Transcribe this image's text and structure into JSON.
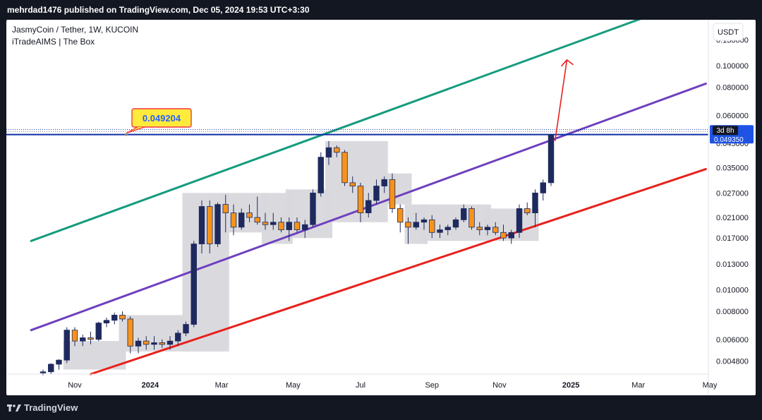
{
  "header": {
    "publish_line": "mehrdad1476 published on TradingView.com, Dec 05, 2024 19:53 UTC+3:30"
  },
  "footer": {
    "brand": "TradingView",
    "logo_icon": "tradingview-logo-icon"
  },
  "chart_data": {
    "type": "candlestick",
    "title": "JasmyCoin / Tether, 1W, KUCOIN",
    "indicator": "iTradeAIMS | The Box",
    "currency_button": "USDT",
    "y_scale": "log",
    "ylim": [
      0.0042,
      0.16
    ],
    "y_ticks": [
      {
        "value": 0.13,
        "label": "0.130000"
      },
      {
        "value": 0.1,
        "label": "0.100000"
      },
      {
        "value": 0.08,
        "label": "0.080000"
      },
      {
        "value": 0.06,
        "label": "0.060000"
      },
      {
        "value": 0.045,
        "label": "0.045000"
      },
      {
        "value": 0.035,
        "label": "0.035000"
      },
      {
        "value": 0.027,
        "label": "0.027000"
      },
      {
        "value": 0.021,
        "label": "0.021000"
      },
      {
        "value": 0.017,
        "label": "0.017000"
      },
      {
        "value": 0.013,
        "label": "0.013000"
      },
      {
        "value": 0.01,
        "label": "0.010000"
      },
      {
        "value": 0.008,
        "label": "0.008000"
      },
      {
        "value": 0.006,
        "label": "0.006000"
      },
      {
        "value": 0.0048,
        "label": "0.004800"
      }
    ],
    "x_ticks": [
      {
        "week": 4,
        "label": "Nov",
        "bold": false
      },
      {
        "week": 13.5,
        "label": "2024",
        "bold": true
      },
      {
        "week": 22.5,
        "label": "Mar",
        "bold": false
      },
      {
        "week": 31.5,
        "label": "May",
        "bold": false
      },
      {
        "week": 40,
        "label": "Jul",
        "bold": false
      },
      {
        "week": 49,
        "label": "Sep",
        "bold": false
      },
      {
        "week": 57.5,
        "label": "Nov",
        "bold": false
      },
      {
        "week": 66.5,
        "label": "2025",
        "bold": true
      },
      {
        "week": 75,
        "label": "Mar",
        "bold": false
      },
      {
        "week": 84,
        "label": "May",
        "bold": false
      }
    ],
    "colors": {
      "up": "#1e2a5e",
      "down": "#f7931a",
      "box": "#d8d8dc",
      "upper_line": "#159b7e",
      "mid_line": "#6e3fbf",
      "lower_line": "#e8201c",
      "level_line": "#0d2fa6",
      "arrow": "#e8201c",
      "label_bg": "#ffeb3b",
      "label_border": "#f23645",
      "label_text": "#2962ff"
    },
    "candles": [
      {
        "o": 0.00425,
        "h": 0.0044,
        "l": 0.00415,
        "c": 0.0043
      },
      {
        "o": 0.0043,
        "h": 0.0047,
        "l": 0.0042,
        "c": 0.00465
      },
      {
        "o": 0.00465,
        "h": 0.0049,
        "l": 0.0044,
        "c": 0.00485
      },
      {
        "o": 0.00485,
        "h": 0.0068,
        "l": 0.0047,
        "c": 0.0066
      },
      {
        "o": 0.0066,
        "h": 0.0068,
        "l": 0.0056,
        "c": 0.0059
      },
      {
        "o": 0.0059,
        "h": 0.0063,
        "l": 0.0056,
        "c": 0.0061
      },
      {
        "o": 0.0061,
        "h": 0.0065,
        "l": 0.0057,
        "c": 0.006
      },
      {
        "o": 0.006,
        "h": 0.0072,
        "l": 0.0059,
        "c": 0.0071
      },
      {
        "o": 0.0071,
        "h": 0.0075,
        "l": 0.0068,
        "c": 0.0073
      },
      {
        "o": 0.0073,
        "h": 0.0079,
        "l": 0.007,
        "c": 0.0077
      },
      {
        "o": 0.0077,
        "h": 0.008,
        "l": 0.0072,
        "c": 0.0074
      },
      {
        "o": 0.0074,
        "h": 0.0076,
        "l": 0.0052,
        "c": 0.0056
      },
      {
        "o": 0.0056,
        "h": 0.0061,
        "l": 0.0052,
        "c": 0.0059
      },
      {
        "o": 0.0059,
        "h": 0.0062,
        "l": 0.0054,
        "c": 0.0057
      },
      {
        "o": 0.0057,
        "h": 0.0062,
        "l": 0.0054,
        "c": 0.0058
      },
      {
        "o": 0.0058,
        "h": 0.006,
        "l": 0.0055,
        "c": 0.0057
      },
      {
        "o": 0.0057,
        "h": 0.0062,
        "l": 0.0054,
        "c": 0.0059
      },
      {
        "o": 0.0059,
        "h": 0.0066,
        "l": 0.0056,
        "c": 0.0064
      },
      {
        "o": 0.0064,
        "h": 0.0072,
        "l": 0.0062,
        "c": 0.007
      },
      {
        "o": 0.007,
        "h": 0.0165,
        "l": 0.0068,
        "c": 0.016
      },
      {
        "o": 0.016,
        "h": 0.025,
        "l": 0.0145,
        "c": 0.0235
      },
      {
        "o": 0.0235,
        "h": 0.025,
        "l": 0.0145,
        "c": 0.016
      },
      {
        "o": 0.016,
        "h": 0.0245,
        "l": 0.0155,
        "c": 0.024
      },
      {
        "o": 0.024,
        "h": 0.0265,
        "l": 0.018,
        "c": 0.022
      },
      {
        "o": 0.022,
        "h": 0.024,
        "l": 0.0175,
        "c": 0.019
      },
      {
        "o": 0.019,
        "h": 0.023,
        "l": 0.0185,
        "c": 0.022
      },
      {
        "o": 0.022,
        "h": 0.024,
        "l": 0.02,
        "c": 0.021
      },
      {
        "o": 0.021,
        "h": 0.026,
        "l": 0.0195,
        "c": 0.02
      },
      {
        "o": 0.02,
        "h": 0.022,
        "l": 0.0185,
        "c": 0.0195
      },
      {
        "o": 0.0195,
        "h": 0.022,
        "l": 0.0185,
        "c": 0.02
      },
      {
        "o": 0.02,
        "h": 0.021,
        "l": 0.018,
        "c": 0.0185
      },
      {
        "o": 0.0185,
        "h": 0.021,
        "l": 0.0165,
        "c": 0.02
      },
      {
        "o": 0.02,
        "h": 0.021,
        "l": 0.018,
        "c": 0.0185
      },
      {
        "o": 0.0185,
        "h": 0.0205,
        "l": 0.017,
        "c": 0.0195
      },
      {
        "o": 0.0195,
        "h": 0.028,
        "l": 0.019,
        "c": 0.027
      },
      {
        "o": 0.027,
        "h": 0.041,
        "l": 0.026,
        "c": 0.039
      },
      {
        "o": 0.039,
        "h": 0.046,
        "l": 0.036,
        "c": 0.043
      },
      {
        "o": 0.043,
        "h": 0.044,
        "l": 0.039,
        "c": 0.041
      },
      {
        "o": 0.041,
        "h": 0.042,
        "l": 0.029,
        "c": 0.03
      },
      {
        "o": 0.03,
        "h": 0.032,
        "l": 0.027,
        "c": 0.029
      },
      {
        "o": 0.029,
        "h": 0.03,
        "l": 0.02,
        "c": 0.022
      },
      {
        "o": 0.022,
        "h": 0.027,
        "l": 0.021,
        "c": 0.025
      },
      {
        "o": 0.025,
        "h": 0.031,
        "l": 0.024,
        "c": 0.029
      },
      {
        "o": 0.029,
        "h": 0.032,
        "l": 0.027,
        "c": 0.031
      },
      {
        "o": 0.031,
        "h": 0.033,
        "l": 0.022,
        "c": 0.023
      },
      {
        "o": 0.023,
        "h": 0.024,
        "l": 0.018,
        "c": 0.02
      },
      {
        "o": 0.02,
        "h": 0.021,
        "l": 0.016,
        "c": 0.019
      },
      {
        "o": 0.019,
        "h": 0.022,
        "l": 0.0185,
        "c": 0.02
      },
      {
        "o": 0.02,
        "h": 0.021,
        "l": 0.0185,
        "c": 0.0205
      },
      {
        "o": 0.0205,
        "h": 0.0215,
        "l": 0.017,
        "c": 0.018
      },
      {
        "o": 0.018,
        "h": 0.0195,
        "l": 0.017,
        "c": 0.0185
      },
      {
        "o": 0.0185,
        "h": 0.0195,
        "l": 0.0175,
        "c": 0.019
      },
      {
        "o": 0.019,
        "h": 0.021,
        "l": 0.0185,
        "c": 0.0205
      },
      {
        "o": 0.0205,
        "h": 0.024,
        "l": 0.02,
        "c": 0.023
      },
      {
        "o": 0.023,
        "h": 0.0235,
        "l": 0.0185,
        "c": 0.019
      },
      {
        "o": 0.019,
        "h": 0.02,
        "l": 0.0175,
        "c": 0.0185
      },
      {
        "o": 0.0185,
        "h": 0.0195,
        "l": 0.0175,
        "c": 0.019
      },
      {
        "o": 0.019,
        "h": 0.02,
        "l": 0.0175,
        "c": 0.018
      },
      {
        "o": 0.018,
        "h": 0.0195,
        "l": 0.0165,
        "c": 0.017
      },
      {
        "o": 0.017,
        "h": 0.0185,
        "l": 0.016,
        "c": 0.018
      },
      {
        "o": 0.018,
        "h": 0.024,
        "l": 0.017,
        "c": 0.023
      },
      {
        "o": 0.023,
        "h": 0.0245,
        "l": 0.0215,
        "c": 0.022
      },
      {
        "o": 0.022,
        "h": 0.028,
        "l": 0.019,
        "c": 0.027
      },
      {
        "o": 0.027,
        "h": 0.031,
        "l": 0.025,
        "c": 0.03
      },
      {
        "o": 0.03,
        "h": 0.0495,
        "l": 0.029,
        "c": 0.049
      }
    ],
    "boxes": [
      {
        "from": 3,
        "to": 10,
        "low": 0.0044,
        "high": 0.0059
      },
      {
        "from": 10,
        "to": 18,
        "low": 0.0053,
        "high": 0.0077
      },
      {
        "from": 18,
        "to": 23,
        "low": 0.0053,
        "high": 0.027
      },
      {
        "from": 23,
        "to": 28,
        "low": 0.018,
        "high": 0.027
      },
      {
        "from": 28,
        "to": 31,
        "low": 0.016,
        "high": 0.027
      },
      {
        "from": 31,
        "to": 36,
        "low": 0.017,
        "high": 0.028
      },
      {
        "from": 36,
        "to": 43,
        "low": 0.02,
        "high": 0.046
      },
      {
        "from": 43,
        "to": 46,
        "low": 0.024,
        "high": 0.033
      },
      {
        "from": 46,
        "to": 48,
        "low": 0.016,
        "high": 0.024
      },
      {
        "from": 48,
        "to": 56,
        "low": 0.0165,
        "high": 0.024
      },
      {
        "from": 56,
        "to": 62,
        "low": 0.0165,
        "high": 0.023
      }
    ],
    "lines": [
      {
        "name": "upper-channel",
        "color_key": "upper_line",
        "x1": -1.5,
        "y1": 0.0165,
        "x2": 77,
        "y2": 0.17
      },
      {
        "name": "mid-channel",
        "color_key": "mid_line",
        "x1": -1.5,
        "y1": 0.0066,
        "x2": 83.5,
        "y2": 0.083
      },
      {
        "name": "lower-channel",
        "color_key": "lower_line",
        "x1": 6,
        "y1": 0.0042,
        "x2": 83.5,
        "y2": 0.0345
      }
    ],
    "level": {
      "value": 0.049204,
      "label": "0.049204"
    },
    "price_badge": {
      "value": 0.04935,
      "label": "0.049350",
      "countdown": "3d 8h"
    },
    "arrow": {
      "from_week": 64.5,
      "from_value": 0.046,
      "to_week": 66,
      "to_value": 0.106
    }
  }
}
